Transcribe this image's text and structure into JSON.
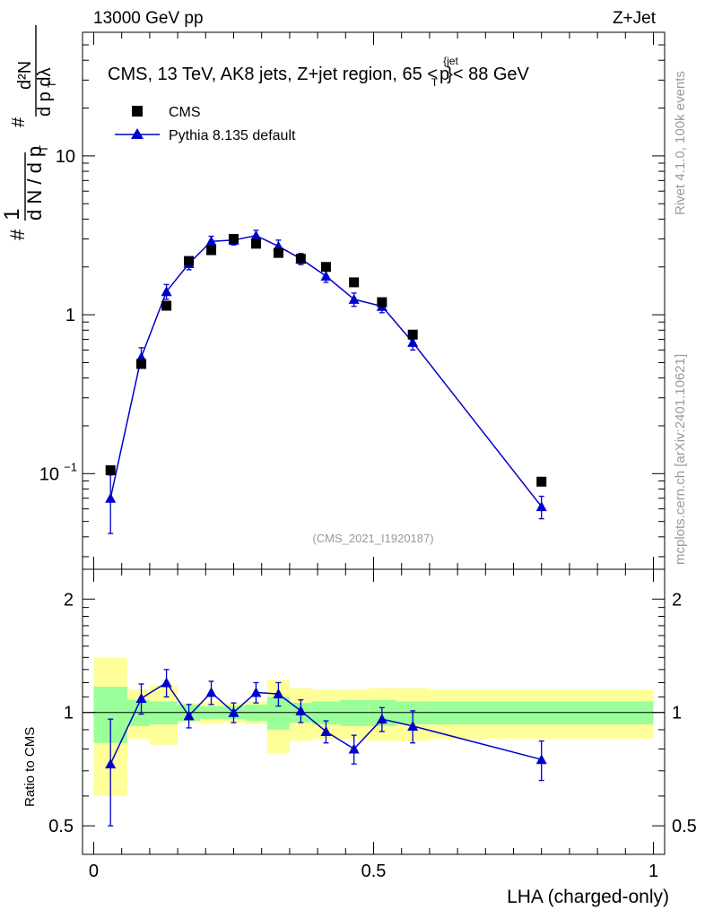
{
  "header": {
    "left": "13000 GeV pp",
    "right": "Z+Jet"
  },
  "side": {
    "rivet": "Rivet 4.1.0,  100k events",
    "mcplots": "mcplots.cern.ch [arXiv:2401.10621]"
  },
  "chart_data": {
    "type": "scatter",
    "title": "CMS, 13 TeV, AK8 jets, Z+jet region, 65 <p_T^{jet}< 88 GeV",
    "analysis_tag": "(CMS_2021_I1920187)",
    "ylabel_main": "1/(dN/dp_T) d²N/(dp_T dλ)",
    "ylabel_ratio": "Ratio to CMS",
    "xlabel": "LHA (charged-only)",
    "xlim": [
      -0.02,
      1.02
    ],
    "ylim_main": [
      0.025,
      60
    ],
    "ylim_ratio": [
      0.42,
      2.4
    ],
    "yscale": "log",
    "main_ticks": [
      {
        "value": 0.1,
        "label": "10",
        "exp": "−1"
      },
      {
        "value": 1,
        "label": "1",
        "exp": ""
      },
      {
        "value": 10,
        "label": "10",
        "exp": ""
      }
    ],
    "ratio_ticks": [
      {
        "value": 0.5,
        "label": "0.5"
      },
      {
        "value": 1,
        "label": "1"
      },
      {
        "value": 2,
        "label": "2"
      }
    ],
    "x_ticks": [
      {
        "value": 0,
        "label": "0"
      },
      {
        "value": 0.5,
        "label": "0.5"
      },
      {
        "value": 1,
        "label": "1"
      }
    ],
    "bin_edges": [
      0,
      0.06,
      0.1,
      0.15,
      0.19,
      0.23,
      0.27,
      0.31,
      0.35,
      0.39,
      0.44,
      0.49,
      0.54,
      0.6,
      1.0
    ],
    "series": [
      {
        "name": "CMS",
        "marker": "square",
        "color": "#000000",
        "x": [
          0.03,
          0.085,
          0.13,
          0.17,
          0.21,
          0.25,
          0.29,
          0.33,
          0.37,
          0.415,
          0.465,
          0.515,
          0.57,
          0.8
        ],
        "y": [
          0.105,
          0.49,
          1.14,
          2.18,
          2.55,
          3.0,
          2.8,
          2.45,
          2.25,
          2.0,
          1.6,
          1.2,
          0.75,
          0.089
        ],
        "band_green": [
          0.17,
          0.08,
          0.07,
          0.05,
          0.04,
          0.04,
          0.05,
          0.1,
          0.06,
          0.07,
          0.08,
          0.08,
          0.07,
          0.07
        ],
        "band_yellow": [
          0.4,
          0.15,
          0.18,
          0.06,
          0.07,
          0.06,
          0.07,
          0.22,
          0.16,
          0.15,
          0.15,
          0.16,
          0.16,
          0.15
        ]
      },
      {
        "name": "Pythia 8.135 default",
        "marker": "triangle",
        "color": "#0000cc",
        "x": [
          0.03,
          0.085,
          0.13,
          0.17,
          0.21,
          0.25,
          0.29,
          0.33,
          0.37,
          0.415,
          0.465,
          0.515,
          0.57,
          0.8
        ],
        "y": [
          0.07,
          0.54,
          1.4,
          2.1,
          2.9,
          2.95,
          3.15,
          2.7,
          2.25,
          1.75,
          1.25,
          1.13,
          0.67,
          0.062
        ],
        "err": [
          0.028,
          0.08,
          0.15,
          0.18,
          0.22,
          0.2,
          0.25,
          0.25,
          0.18,
          0.15,
          0.12,
          0.1,
          0.07,
          0.01
        ],
        "ratio": [
          0.73,
          1.09,
          1.2,
          0.98,
          1.13,
          1.0,
          1.13,
          1.12,
          1.01,
          0.89,
          0.8,
          0.96,
          0.92,
          0.75
        ],
        "ratio_err": [
          0.23,
          0.1,
          0.1,
          0.07,
          0.08,
          0.06,
          0.07,
          0.08,
          0.07,
          0.06,
          0.07,
          0.07,
          0.09,
          0.09
        ]
      }
    ],
    "legend": [
      "CMS",
      "Pythia 8.135 default"
    ],
    "legend_position": "top-left"
  }
}
